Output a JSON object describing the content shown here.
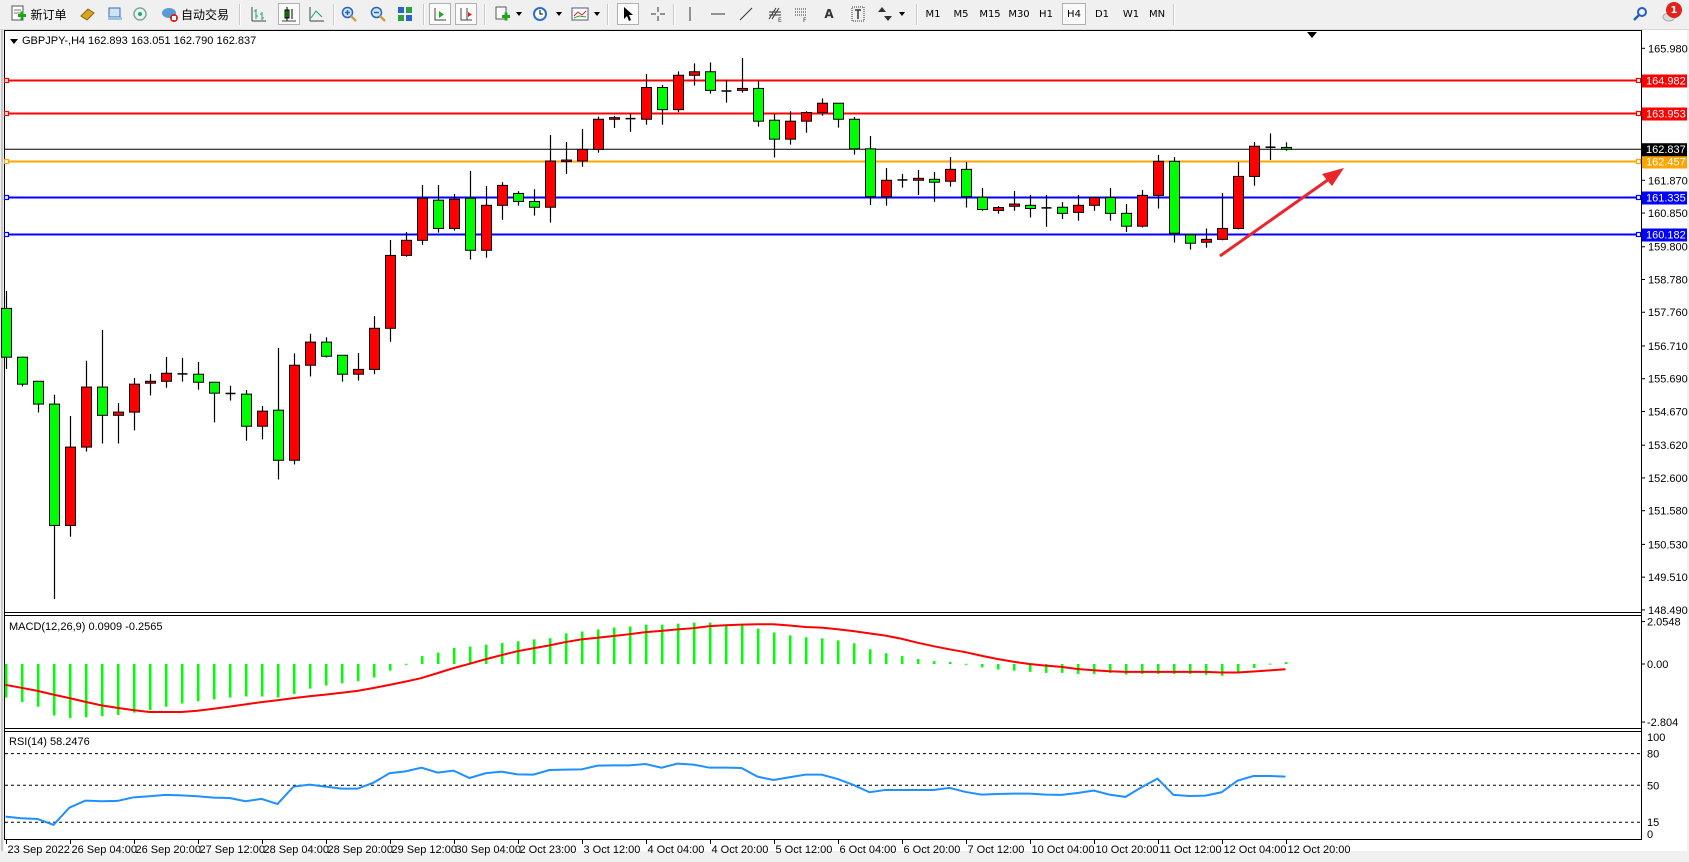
{
  "toolbar": {
    "new_order": "新订单",
    "auto_trading": "自动交易",
    "timeframes": [
      "M1",
      "M5",
      "M15",
      "M30",
      "H1",
      "H4",
      "D1",
      "W1",
      "MN"
    ],
    "selected_timeframe": "H4",
    "notification_count": "1",
    "icons": [
      "new-order-icon",
      "gold-icon",
      "terminal-icon",
      "signals-icon",
      "auto-trading-icon",
      "bar-chart-icon",
      "candlestick-icon",
      "line-chart-icon",
      "zoom-in-icon",
      "zoom-out-icon",
      "tile-windows-icon",
      "auto-scroll-icon",
      "chart-shift-icon",
      "new-chart-icon",
      "periods-icon",
      "indicators-icon",
      "cursor-icon",
      "crosshair-icon",
      "vertical-line-icon",
      "horizontal-line-icon",
      "trendline-icon",
      "fibonacci-expansion-icon",
      "fibonacci-fan-icon",
      "text-icon",
      "text-label-icon",
      "arrows-icon",
      "search-icon",
      "notification-icon"
    ]
  },
  "chart_header": {
    "symbol": "GBPJPY-,H4",
    "ohlc": "162.893 163.051 162.790 162.837"
  },
  "macd_header": "MACD(12,26,9) 0.0909 -0.2565",
  "rsi_header": "RSI(14) 58.2476",
  "colors": {
    "up_candle": "#ff0000",
    "down_candle": "#00ff00",
    "resistance_line": "#ff0000",
    "pivot_line": "#ffa500",
    "support_line": "#0000ff",
    "current_price": "#000000",
    "macd_histogram": "#00ff00",
    "macd_signal": "#ff0000",
    "rsi_line": "#1e90ff",
    "annotation_arrow": "#e8262b"
  },
  "chart_data": [
    {
      "type": "candlestick",
      "symbol": "GBPJPY-",
      "timeframe": "H4",
      "ylim": [
        148.49,
        165.98
      ],
      "y_ticks": [
        "165.980",
        "161.870",
        "160.850",
        "159.800",
        "158.780",
        "157.760",
        "156.710",
        "155.690",
        "154.670",
        "153.620",
        "152.600",
        "151.580",
        "150.530",
        "149.510",
        "148.490"
      ],
      "x_ticks": [
        "23 Sep 2022",
        "26 Sep 04:00",
        "26 Sep 20:00",
        "27 Sep 12:00",
        "28 Sep 04:00",
        "28 Sep 20:00",
        "29 Sep 12:00",
        "30 Sep 04:00",
        "2 Oct 23:00",
        "3 Oct 12:00",
        "4 Oct 04:00",
        "4 Oct 20:00",
        "5 Oct 12:00",
        "6 Oct 04:00",
        "6 Oct 20:00",
        "7 Oct 12:00",
        "10 Oct 04:00",
        "10 Oct 20:00",
        "11 Oct 12:00",
        "12 Oct 04:00",
        "12 Oct 20:00"
      ],
      "x_tick_every_bars": 4,
      "ohlc": [
        [
          157.88,
          158.42,
          155.99,
          156.36
        ],
        [
          156.36,
          156.38,
          155.45,
          155.52
        ],
        [
          155.61,
          155.61,
          154.64,
          154.9
        ],
        [
          154.9,
          155.19,
          148.83,
          151.12
        ],
        [
          151.12,
          154.53,
          150.77,
          153.56
        ],
        [
          153.56,
          156.25,
          153.42,
          155.43
        ],
        [
          155.43,
          157.21,
          153.67,
          154.55
        ],
        [
          154.55,
          154.93,
          153.67,
          154.65
        ],
        [
          154.65,
          155.71,
          154.08,
          155.52
        ],
        [
          155.55,
          155.84,
          155.17,
          155.61
        ],
        [
          155.61,
          156.37,
          155.41,
          155.86
        ],
        [
          155.84,
          156.34,
          155.6,
          155.84
        ],
        [
          155.83,
          156.21,
          155.35,
          155.58
        ],
        [
          155.58,
          155.58,
          154.33,
          155.24
        ],
        [
          155.23,
          155.47,
          155.01,
          155.23
        ],
        [
          155.21,
          155.34,
          153.76,
          154.21
        ],
        [
          154.21,
          154.84,
          153.8,
          154.68
        ],
        [
          154.71,
          156.65,
          152.55,
          153.15
        ],
        [
          153.15,
          156.48,
          153.02,
          156.11
        ],
        [
          156.11,
          157.09,
          155.76,
          156.83
        ],
        [
          156.83,
          156.98,
          156.35,
          156.39
        ],
        [
          156.42,
          156.42,
          155.6,
          155.83
        ],
        [
          155.83,
          156.49,
          155.63,
          155.98
        ],
        [
          155.98,
          157.64,
          155.83,
          157.26
        ],
        [
          157.26,
          160.01,
          156.84,
          159.53
        ],
        [
          159.53,
          160.26,
          159.49,
          160.0
        ],
        [
          160.0,
          161.72,
          159.86,
          161.31
        ],
        [
          161.25,
          161.72,
          160.24,
          160.37
        ],
        [
          160.37,
          161.44,
          160.3,
          161.28
        ],
        [
          161.31,
          162.16,
          159.4,
          159.69
        ],
        [
          159.69,
          161.69,
          159.46,
          161.09
        ],
        [
          161.09,
          161.81,
          160.64,
          161.71
        ],
        [
          161.46,
          161.53,
          161.08,
          161.21
        ],
        [
          161.21,
          161.59,
          160.77,
          161.03
        ],
        [
          161.03,
          163.28,
          160.55,
          162.47
        ],
        [
          162.45,
          163.06,
          162.07,
          162.5
        ],
        [
          162.47,
          163.47,
          162.29,
          162.83
        ],
        [
          162.83,
          163.85,
          162.73,
          163.77
        ],
        [
          163.77,
          163.87,
          163.5,
          163.82
        ],
        [
          163.79,
          163.95,
          163.38,
          163.79
        ],
        [
          163.77,
          165.18,
          163.6,
          164.76
        ],
        [
          164.76,
          164.84,
          163.6,
          164.07
        ],
        [
          164.07,
          165.26,
          163.99,
          165.14
        ],
        [
          165.14,
          165.51,
          164.82,
          165.25
        ],
        [
          165.25,
          165.54,
          164.57,
          164.67
        ],
        [
          164.65,
          165.0,
          164.29,
          164.65
        ],
        [
          164.67,
          165.68,
          164.6,
          164.73
        ],
        [
          164.73,
          164.97,
          163.54,
          163.71
        ],
        [
          163.74,
          163.93,
          162.58,
          163.15
        ],
        [
          163.15,
          164.02,
          162.98,
          163.71
        ],
        [
          163.71,
          164.02,
          163.35,
          163.98
        ],
        [
          163.98,
          164.42,
          163.88,
          164.27
        ],
        [
          164.27,
          164.27,
          163.51,
          163.77
        ],
        [
          163.77,
          163.84,
          162.67,
          162.85
        ],
        [
          162.85,
          163.25,
          161.1,
          161.36
        ],
        [
          161.36,
          162.25,
          161.08,
          161.87
        ],
        [
          161.88,
          162.07,
          161.64,
          161.88
        ],
        [
          161.87,
          162.19,
          161.41,
          161.93
        ],
        [
          161.9,
          162.13,
          161.2,
          161.81
        ],
        [
          161.84,
          162.59,
          161.67,
          162.21
        ],
        [
          162.21,
          162.44,
          161.02,
          161.36
        ],
        [
          161.34,
          161.63,
          160.92,
          160.96
        ],
        [
          160.93,
          161.07,
          160.83,
          161.02
        ],
        [
          161.06,
          161.54,
          160.92,
          161.13
        ],
        [
          161.09,
          161.41,
          160.71,
          160.99
        ],
        [
          161.01,
          161.41,
          160.42,
          161.01
        ],
        [
          161.03,
          161.19,
          160.66,
          160.84
        ],
        [
          160.87,
          161.41,
          160.61,
          161.09
        ],
        [
          161.09,
          161.33,
          160.92,
          161.33
        ],
        [
          161.33,
          161.63,
          160.61,
          160.84
        ],
        [
          160.84,
          161.13,
          160.26,
          160.44
        ],
        [
          160.44,
          161.57,
          160.4,
          161.4
        ],
        [
          161.4,
          162.66,
          160.99,
          162.46
        ],
        [
          162.46,
          162.59,
          159.93,
          160.22
        ],
        [
          160.17,
          160.17,
          159.71,
          159.91
        ],
        [
          159.94,
          160.37,
          159.77,
          160.03
        ],
        [
          160.03,
          161.47,
          160.0,
          160.37
        ],
        [
          160.37,
          162.44,
          160.34,
          161.99
        ],
        [
          161.99,
          163.06,
          161.7,
          162.93
        ],
        [
          162.9,
          163.33,
          162.5,
          162.9
        ],
        [
          162.893,
          163.051,
          162.79,
          162.837
        ]
      ],
      "horizontal_lines": [
        {
          "price": 164.982,
          "label": "164.982",
          "kind": "resistance"
        },
        {
          "price": 163.953,
          "label": "163.953",
          "kind": "resistance"
        },
        {
          "price": 162.457,
          "label": "162.457",
          "kind": "pivot"
        },
        {
          "price": 161.335,
          "label": "161.335",
          "kind": "support"
        },
        {
          "price": 160.182,
          "label": "160.182",
          "kind": "support"
        }
      ],
      "current_price": {
        "price": 162.837,
        "label": "162.837"
      },
      "annotation": "red arrow pointing up-right from the 12 Oct lows"
    },
    {
      "type": "bar+line",
      "name": "MACD(12,26,9)",
      "ylim": [
        -2.804,
        2.0548
      ],
      "y_ticks": [
        "2.0548",
        "0.00",
        "-2.804"
      ],
      "histogram": [
        -1.62,
        -1.84,
        -2.06,
        -2.49,
        -2.61,
        -2.57,
        -2.52,
        -2.46,
        -2.35,
        -2.23,
        -2.06,
        -1.91,
        -1.8,
        -1.71,
        -1.62,
        -1.57,
        -1.57,
        -1.62,
        -1.45,
        -1.19,
        -1.04,
        -0.93,
        -0.83,
        -0.65,
        -0.32,
        0.01,
        0.38,
        0.55,
        0.78,
        0.84,
        0.93,
        1.01,
        1.1,
        1.19,
        1.25,
        1.48,
        1.57,
        1.67,
        1.76,
        1.81,
        1.9,
        1.9,
        1.95,
        2.0,
        2.0,
        1.86,
        1.86,
        1.71,
        1.52,
        1.38,
        1.29,
        1.24,
        1.14,
        1.0,
        0.71,
        0.52,
        0.38,
        0.24,
        0.14,
        0.1,
        0.01,
        -0.16,
        -0.27,
        -0.32,
        -0.38,
        -0.43,
        -0.43,
        -0.48,
        -0.48,
        -0.43,
        -0.51,
        -0.48,
        -0.48,
        -0.48,
        -0.48,
        -0.52,
        -0.57,
        -0.43,
        -0.19,
        0.02,
        0.0909
      ],
      "signal": [
        -1.01,
        -1.15,
        -1.3,
        -1.48,
        -1.65,
        -1.83,
        -2.0,
        -2.12,
        -2.23,
        -2.32,
        -2.32,
        -2.32,
        -2.26,
        -2.16,
        -2.06,
        -1.95,
        -1.84,
        -1.75,
        -1.65,
        -1.56,
        -1.48,
        -1.39,
        -1.3,
        -1.16,
        -1.01,
        -0.85,
        -0.68,
        -0.44,
        -0.2,
        0.01,
        0.23,
        0.43,
        0.62,
        0.76,
        0.9,
        1.06,
        1.19,
        1.27,
        1.35,
        1.44,
        1.54,
        1.6,
        1.67,
        1.73,
        1.83,
        1.87,
        1.9,
        1.92,
        1.92,
        1.86,
        1.79,
        1.76,
        1.68,
        1.59,
        1.48,
        1.37,
        1.22,
        1.03,
        0.86,
        0.71,
        0.57,
        0.4,
        0.24,
        0.11,
        0.0,
        -0.08,
        -0.14,
        -0.24,
        -0.3,
        -0.35,
        -0.38,
        -0.38,
        -0.38,
        -0.38,
        -0.38,
        -0.38,
        -0.41,
        -0.41,
        -0.36,
        -0.31,
        -0.2565
      ]
    },
    {
      "type": "line",
      "name": "RSI(14)",
      "ylim": [
        0,
        100
      ],
      "y_ticks": [
        "100",
        "80",
        "50",
        "15",
        "0"
      ],
      "levels": [
        80,
        50,
        15
      ],
      "values": [
        20.3,
        18.8,
        18.1,
        12.5,
        28.9,
        35.5,
        34.9,
        35.2,
        38.6,
        39.6,
        40.9,
        40.5,
        39.6,
        38.3,
        38.0,
        34.9,
        37.1,
        32.3,
        48.7,
        50.6,
        48.7,
        46.8,
        46.8,
        52.5,
        61.4,
        63.2,
        66.7,
        62.0,
        63.9,
        56.9,
        61.4,
        62.9,
        60.4,
        60.1,
        64.5,
        64.8,
        65.1,
        68.6,
        68.9,
        68.9,
        70.2,
        66.7,
        70.5,
        69.6,
        66.7,
        66.7,
        66.4,
        58.2,
        55.0,
        57.6,
        60.1,
        60.1,
        56.0,
        50.3,
        43.4,
        45.6,
        45.6,
        45.6,
        45.6,
        47.5,
        43.7,
        41.2,
        41.8,
        42.1,
        42.1,
        41.2,
        40.9,
        42.7,
        45.0,
        41.2,
        39.0,
        48.1,
        56.3,
        40.9,
        39.9,
        40.2,
        43.4,
        54.4,
        58.8,
        58.8,
        58.2476
      ]
    }
  ]
}
